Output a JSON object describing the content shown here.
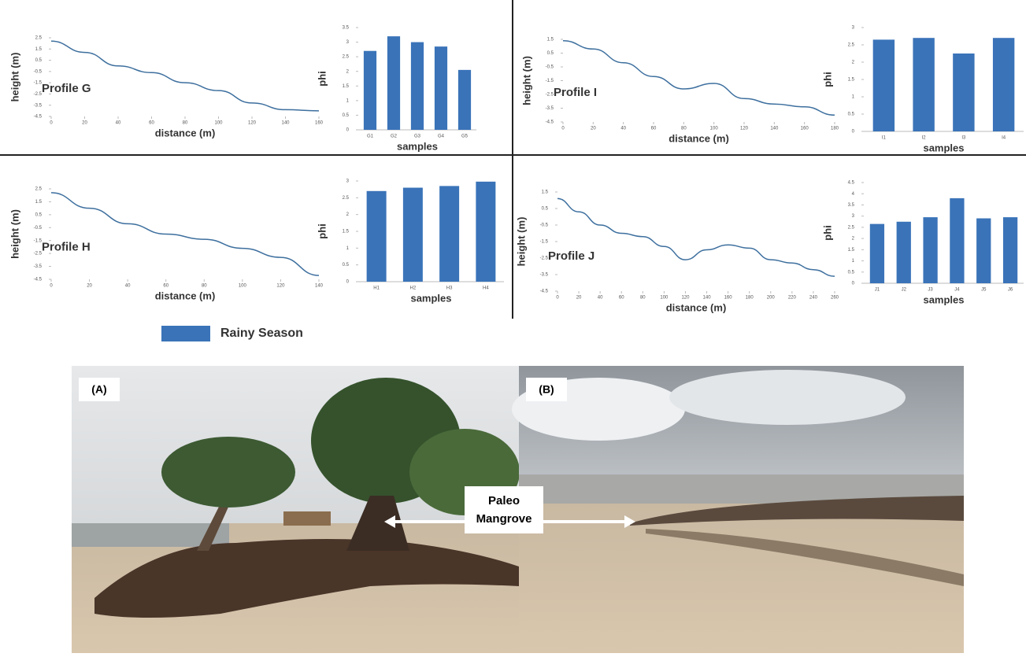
{
  "chart_data": [
    {
      "type": "line",
      "annotation": "Profile G",
      "xlabel": "distance (m)",
      "ylabel": "height (m)",
      "color": "#3d6f9e",
      "x": [
        0,
        20,
        40,
        60,
        80,
        100,
        120,
        140,
        160
      ],
      "values": [
        2.2,
        1.2,
        0,
        -0.6,
        -1.5,
        -2.2,
        -3.3,
        -3.9,
        -4.0
      ],
      "xlim": [
        0,
        160
      ],
      "xticks": [
        0,
        20,
        40,
        60,
        80,
        100,
        120,
        140,
        160
      ],
      "ylim": [
        -4.5,
        2.5
      ],
      "yticks": [
        -4.5,
        -3.5,
        -2.5,
        -1.5,
        -0.5,
        0.5,
        1.5,
        2.5
      ]
    },
    {
      "type": "bar",
      "xlabel": "samples",
      "ylabel": "phi",
      "color": "#3a73b8",
      "categories": [
        "G1",
        "G2",
        "G3",
        "G4",
        "G5"
      ],
      "values": [
        2.7,
        3.2,
        3.0,
        2.85,
        2.05
      ],
      "ylim": [
        0,
        3.5
      ],
      "yticks": [
        0,
        0.5,
        1,
        1.5,
        2,
        2.5,
        3,
        3.5
      ]
    },
    {
      "type": "line",
      "annotation": "Profile I",
      "xlabel": "distance (m)",
      "ylabel": "height (m)",
      "color": "#3d6f9e",
      "x": [
        0,
        20,
        40,
        60,
        80,
        100,
        120,
        140,
        160,
        180
      ],
      "values": [
        1.4,
        0.8,
        -0.2,
        -1.2,
        -2.1,
        -1.7,
        -2.8,
        -3.2,
        -3.4,
        -4.0
      ],
      "xlim": [
        0,
        180
      ],
      "xticks": [
        0,
        20,
        40,
        60,
        80,
        100,
        120,
        140,
        160,
        180
      ],
      "ylim": [
        -4.5,
        1.5
      ],
      "yticks": [
        -4.5,
        -3.5,
        -2.5,
        -1.5,
        -0.5,
        0.5,
        1.5
      ]
    },
    {
      "type": "bar",
      "xlabel": "samples",
      "ylabel": "phi",
      "color": "#3a73b8",
      "categories": [
        "I1",
        "I2",
        "I3",
        "I4"
      ],
      "values": [
        2.65,
        2.7,
        2.25,
        2.7
      ],
      "ylim": [
        0,
        3
      ],
      "yticks": [
        0,
        0.5,
        1,
        1.5,
        2,
        2.5,
        3
      ]
    },
    {
      "type": "line",
      "annotation": "Profile H",
      "xlabel": "distance (m)",
      "ylabel": "height (m)",
      "color": "#3d6f9e",
      "x": [
        0,
        20,
        40,
        60,
        80,
        100,
        120,
        140
      ],
      "values": [
        2.2,
        1.0,
        -0.2,
        -1.0,
        -1.4,
        -2.1,
        -2.8,
        -4.2
      ],
      "xlim": [
        0,
        140
      ],
      "xticks": [
        0,
        20,
        40,
        60,
        80,
        100,
        120,
        140
      ],
      "ylim": [
        -4.5,
        2.5
      ],
      "yticks": [
        -4.5,
        -3.5,
        -2.5,
        -1.5,
        -0.5,
        0.5,
        1.5,
        2.5
      ]
    },
    {
      "type": "bar",
      "xlabel": "samples",
      "ylabel": "phi",
      "color": "#3a73b8",
      "categories": [
        "H1",
        "H2",
        "H3",
        "H4"
      ],
      "values": [
        2.7,
        2.8,
        2.85,
        2.98
      ],
      "ylim": [
        0,
        3
      ],
      "yticks": [
        0,
        0.5,
        1,
        1.5,
        2,
        2.5,
        3
      ]
    },
    {
      "type": "line",
      "annotation": "Profile J",
      "xlabel": "distance (m)",
      "ylabel": "height (m)",
      "color": "#3d6f9e",
      "x": [
        0,
        20,
        40,
        60,
        80,
        100,
        120,
        140,
        160,
        180,
        200,
        220,
        240,
        260
      ],
      "values": [
        1.1,
        0.3,
        -0.5,
        -1.0,
        -1.2,
        -1.8,
        -2.6,
        -2.0,
        -1.7,
        -1.9,
        -2.6,
        -2.8,
        -3.2,
        -3.6
      ],
      "xlim": [
        0,
        260
      ],
      "xticks": [
        0,
        20,
        40,
        60,
        80,
        100,
        120,
        140,
        160,
        180,
        200,
        220,
        240,
        260
      ],
      "ylim": [
        -4.5,
        1.5
      ],
      "yticks": [
        -4.5,
        -3.5,
        -2.5,
        -1.5,
        -0.5,
        0.5,
        1.5
      ]
    },
    {
      "type": "bar",
      "xlabel": "samples",
      "ylabel": "phi",
      "color": "#3a73b8",
      "categories": [
        "J1",
        "J2",
        "J3",
        "J4",
        "J5",
        "J6"
      ],
      "values": [
        2.65,
        2.75,
        2.95,
        3.8,
        2.9,
        2.95
      ],
      "ylim": [
        0,
        4.5
      ],
      "yticks": [
        0,
        0.5,
        1,
        1.5,
        2,
        2.5,
        3,
        3.5,
        4,
        4.5
      ]
    }
  ],
  "legend": {
    "label": "Rainy Season",
    "color": "#3a73b8"
  },
  "photos": {
    "panels": [
      {
        "label": "(A)"
      },
      {
        "label": "(B)"
      }
    ],
    "annotation": [
      "Paleo",
      "Mangrove"
    ]
  }
}
